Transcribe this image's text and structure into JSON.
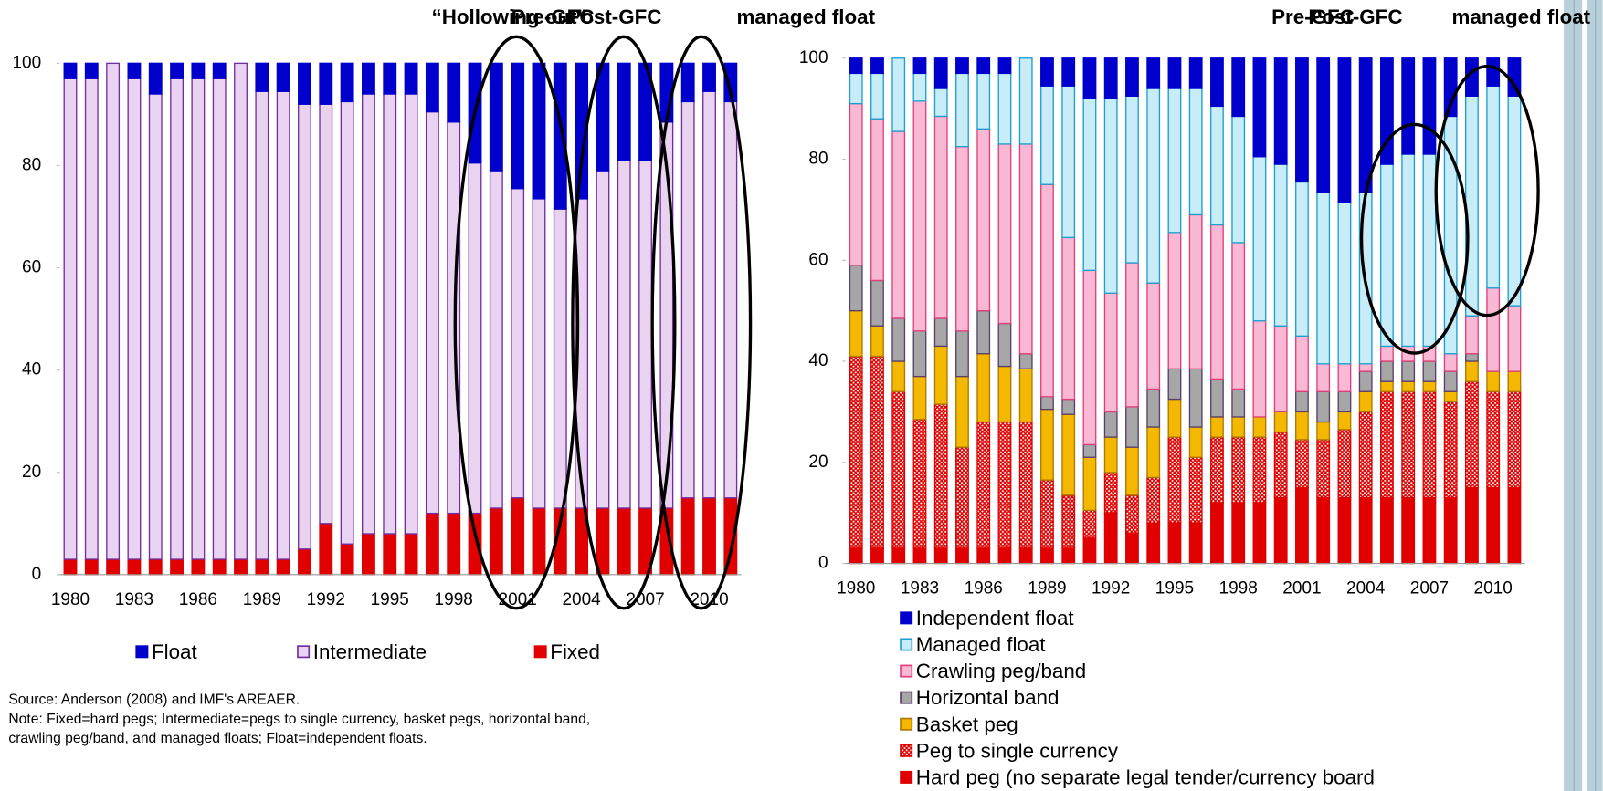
{
  "chart_data": [
    {
      "type": "stacked_bar",
      "annotations": [
        "“Hollowing out”",
        "Pre-GFC",
        "Post-GFC",
        "managed float"
      ],
      "categories": [
        1980,
        null,
        null,
        1983,
        null,
        null,
        1986,
        null,
        null,
        1989,
        null,
        null,
        1992,
        null,
        null,
        1995,
        null,
        null,
        1998,
        null,
        null,
        2001,
        null,
        null,
        2004,
        null,
        null,
        2007,
        null,
        null,
        2010,
        null
      ],
      "ylim": [
        0,
        100
      ],
      "yticks": [
        0,
        20,
        40,
        60,
        80,
        100
      ],
      "legend": "bottom-row",
      "series": [
        {
          "name": "Fixed",
          "color": "#e00000",
          "edgecolor": "#e00000",
          "values": [
            3,
            3,
            3,
            3,
            3,
            3,
            3,
            3,
            3,
            3,
            3,
            5,
            10,
            6,
            8,
            8,
            8,
            12,
            12,
            12,
            13,
            15,
            13,
            13,
            13,
            13,
            13,
            13,
            13,
            15,
            15,
            15
          ]
        },
        {
          "name": "Intermediate",
          "color": "#ead3f0",
          "edgecolor": "#7030a0",
          "values": [
            94,
            94,
            97,
            94,
            91,
            94,
            94,
            94,
            97,
            91.5,
            91.5,
            87,
            82,
            86.5,
            86,
            86,
            86,
            78.5,
            76.5,
            68.5,
            66,
            60.5,
            60.5,
            58.5,
            60.5,
            66,
            68,
            68,
            75.5,
            77.5,
            79.5,
            77.5
          ]
        },
        {
          "name": "Float",
          "color": "#0000cc",
          "edgecolor": "#0000cc",
          "values": [
            3,
            3,
            0,
            3,
            6,
            3,
            3,
            3,
            0,
            5.5,
            5.5,
            8,
            8,
            7.5,
            6,
            6,
            6,
            9.5,
            11.5,
            19.5,
            21,
            24.5,
            26.5,
            28.5,
            26.5,
            21,
            19,
            19,
            11.5,
            7.5,
            5.5,
            7.5
          ]
        }
      ],
      "notes": [
        "Source: Anderson (2008) and IMF's AREAER.",
        "Note: Fixed=hard pegs; Intermediate=pegs to single currency, basket pegs, horizontal band,",
        "crawling peg/band, and managed floats; Float=independent floats."
      ]
    },
    {
      "type": "stacked_bar",
      "annotations": [
        "Pre-GFC",
        "Post-GFC",
        "managed float"
      ],
      "categories": [
        1980,
        null,
        null,
        1983,
        null,
        null,
        1986,
        null,
        null,
        1989,
        null,
        null,
        1992,
        null,
        null,
        1995,
        null,
        null,
        1998,
        null,
        null,
        2001,
        null,
        null,
        2004,
        null,
        null,
        2007,
        null,
        null,
        2010,
        null
      ],
      "ylim": [
        0,
        100
      ],
      "yticks": [
        0,
        20,
        40,
        60,
        80,
        100
      ],
      "legend": "bottom-column",
      "series": [
        {
          "name": "Hard peg (no separate legal tender/currency board",
          "color": "#e00000",
          "edgecolor": "#e00000",
          "values": [
            3,
            3,
            3,
            3,
            3,
            3,
            3,
            3,
            3,
            3,
            3,
            5,
            10,
            6,
            8,
            8,
            8,
            12,
            12,
            12,
            13,
            15,
            13,
            13,
            13,
            13,
            13,
            13,
            13,
            15,
            15,
            15
          ]
        },
        {
          "name": "Peg to single currency",
          "color": "#e00000",
          "edgecolor": "#e00000",
          "pattern": "dotted",
          "values": [
            38,
            38,
            31,
            25.5,
            28.5,
            20,
            25,
            25,
            25,
            13.5,
            10.5,
            5.5,
            8,
            7.5,
            9,
            17,
            13,
            13,
            13,
            13,
            13,
            9.5,
            11.5,
            13.5,
            17,
            21,
            21,
            21,
            19,
            21,
            19,
            19
          ]
        },
        {
          "name": "Basket peg",
          "color": "#f5b800",
          "edgecolor": "#b07800",
          "values": [
            9,
            6,
            6,
            8.5,
            11.5,
            14,
            13.5,
            11,
            10.5,
            14,
            16,
            10.5,
            7,
            9.5,
            10,
            7.5,
            6,
            4,
            4,
            4,
            4,
            5.5,
            3.5,
            3.5,
            4,
            2,
            2,
            2,
            2,
            4,
            4,
            4
          ]
        },
        {
          "name": "Horizontal band",
          "color": "#a6a6a6",
          "edgecolor": "#5a3f6a",
          "values": [
            9,
            9,
            8.5,
            9,
            5.5,
            9,
            8.5,
            8.5,
            3,
            2.5,
            3,
            2.5,
            5,
            8,
            7.5,
            6,
            11.5,
            7.5,
            5.5,
            0,
            0,
            4,
            6,
            4,
            4,
            4,
            4,
            4,
            4,
            1.5,
            0,
            0
          ]
        },
        {
          "name": "Crawling peg/band",
          "color": "#f9b9d5",
          "edgecolor": "#e0407a",
          "values": [
            32,
            32,
            37,
            45.5,
            40,
            36.5,
            36,
            35.5,
            41.5,
            42,
            32,
            34.5,
            23.5,
            28.5,
            21,
            27,
            30.5,
            30.5,
            29,
            19,
            17,
            11,
            5.5,
            5.5,
            1.5,
            3,
            3,
            3,
            3.5,
            7.5,
            16.5,
            13
          ]
        },
        {
          "name": "Managed float",
          "color": "#c8ecf8",
          "edgecolor": "#1f9fd0",
          "values": [
            6,
            9,
            14.5,
            5.5,
            5.5,
            14.5,
            11,
            14,
            17,
            19.5,
            30,
            34,
            38.5,
            33,
            38.5,
            28.5,
            25,
            23.5,
            25,
            32.5,
            32,
            30.5,
            34,
            32,
            34,
            36,
            38,
            38,
            47,
            43.5,
            40,
            41.5
          ]
        },
        {
          "name": "Independent float",
          "color": "#0000cc",
          "edgecolor": "#0000cc",
          "values": [
            3,
            3,
            0,
            3,
            6,
            3,
            3,
            3,
            0,
            5.5,
            5.5,
            8,
            8,
            7.5,
            6,
            6,
            6,
            9.5,
            11.5,
            19.5,
            21,
            24.5,
            26.5,
            28.5,
            26.5,
            21,
            19,
            19,
            11.5,
            7.5,
            5.5,
            7.5
          ]
        }
      ]
    }
  ]
}
